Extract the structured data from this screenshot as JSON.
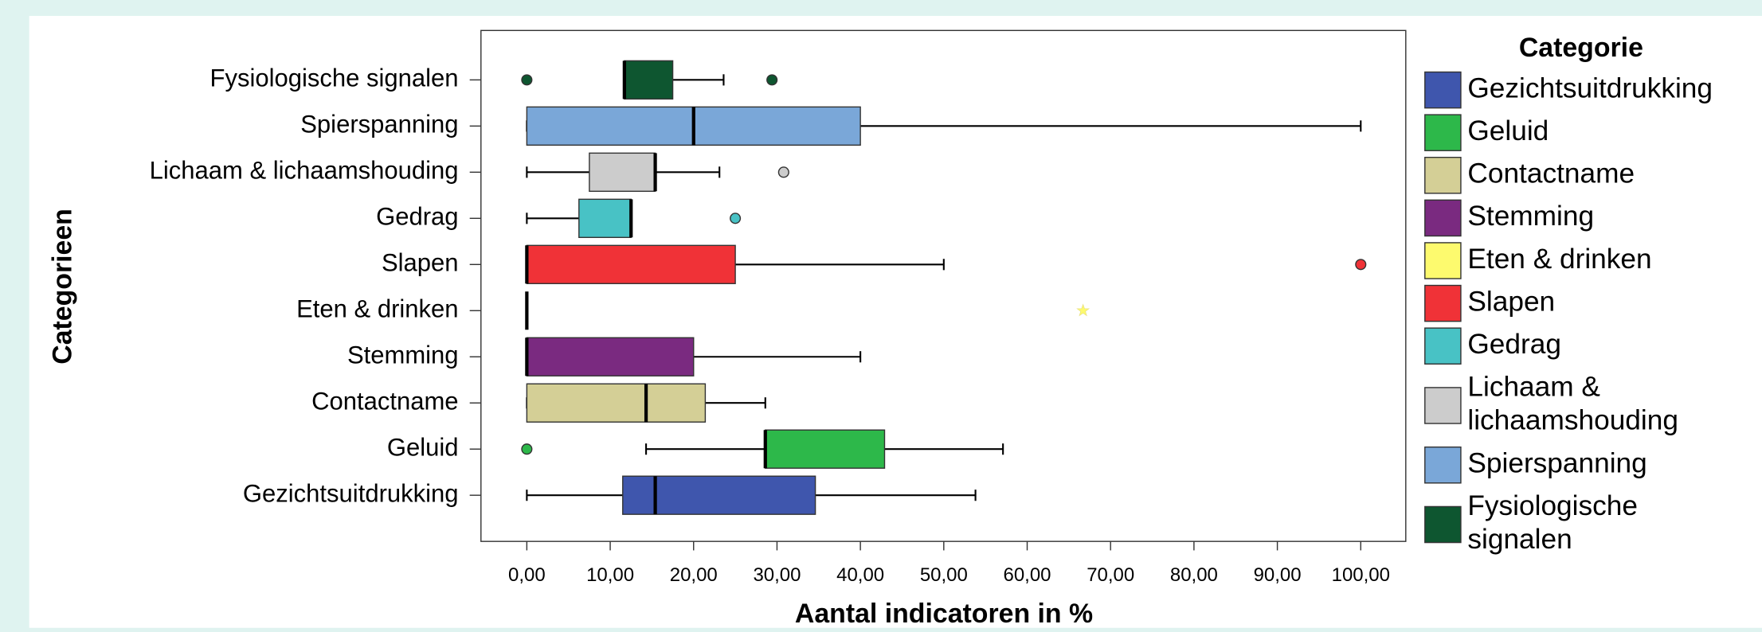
{
  "chart_data": {
    "type": "boxplot",
    "x_label": "Aantal indicatoren in %",
    "y_label": "Categorieen",
    "legend_title": "Categorie",
    "legend_position": "right",
    "xlim": [
      -5.5,
      105.4
    ],
    "xticks": [
      {
        "value": 0,
        "label": "0,00"
      },
      {
        "value": 10,
        "label": "10,00"
      },
      {
        "value": 20,
        "label": "20,00"
      },
      {
        "value": 30,
        "label": "30,00"
      },
      {
        "value": 40,
        "label": "40,00"
      },
      {
        "value": 50,
        "label": "50,00"
      },
      {
        "value": 60,
        "label": "60,00"
      },
      {
        "value": 70,
        "label": "70,00"
      },
      {
        "value": 80,
        "label": "80,00"
      },
      {
        "value": 90,
        "label": "90,00"
      },
      {
        "value": 100,
        "label": "100,00"
      }
    ],
    "series": [
      {
        "name": "Gezichtsuitdrukking",
        "color": "#3f56ad",
        "min": 0,
        "q1": 11.5,
        "median": 15.4,
        "q3": 34.6,
        "max": 53.8,
        "outliers": []
      },
      {
        "name": "Geluid",
        "color": "#2db84a",
        "min": 14.3,
        "q1": 28.6,
        "median": 28.6,
        "q3": 42.9,
        "max": 57.1,
        "outliers": [
          0
        ]
      },
      {
        "name": "Contactname",
        "color": "#d4cf96",
        "min": 0,
        "q1": 0,
        "median": 14.3,
        "q3": 21.4,
        "max": 28.6,
        "outliers": []
      },
      {
        "name": "Stemming",
        "color": "#7a2a80",
        "min": 0,
        "q1": 0,
        "median": 0,
        "q3": 20,
        "max": 40,
        "outliers": []
      },
      {
        "name": "Eten & drinken",
        "color": "#fdfa6e",
        "min": 0,
        "q1": 0,
        "median": 0,
        "q3": 0,
        "max": 0,
        "outliers": [
          66.7
        ],
        "outlier_shape": "star"
      },
      {
        "name": "Slapen",
        "color": "#f03237",
        "min": 0,
        "q1": 0,
        "median": 0,
        "q3": 25,
        "max": 50,
        "outliers": [
          100
        ]
      },
      {
        "name": "Gedrag",
        "color": "#48c2c5",
        "min": 0,
        "q1": 6.25,
        "median": 12.5,
        "q3": 12.5,
        "max": 12.5,
        "outliers": [
          25
        ]
      },
      {
        "name": "Lichaam & lichaamshouding",
        "color": "#cccccc",
        "min": 0,
        "q1": 7.5,
        "median": 15.4,
        "q3": 15.4,
        "max": 23.1,
        "outliers": [
          30.8
        ]
      },
      {
        "name": "Spierspanning",
        "color": "#7aa7d8",
        "min": 0,
        "q1": 0,
        "median": 20,
        "q3": 40,
        "max": 100,
        "outliers": []
      },
      {
        "name": "Fysiologische signalen",
        "color": "#0e5630",
        "min": 11.7,
        "q1": 11.7,
        "median": 11.7,
        "q3": 17.5,
        "max": 23.6,
        "outliers": [
          0,
          29.4
        ]
      }
    ]
  }
}
